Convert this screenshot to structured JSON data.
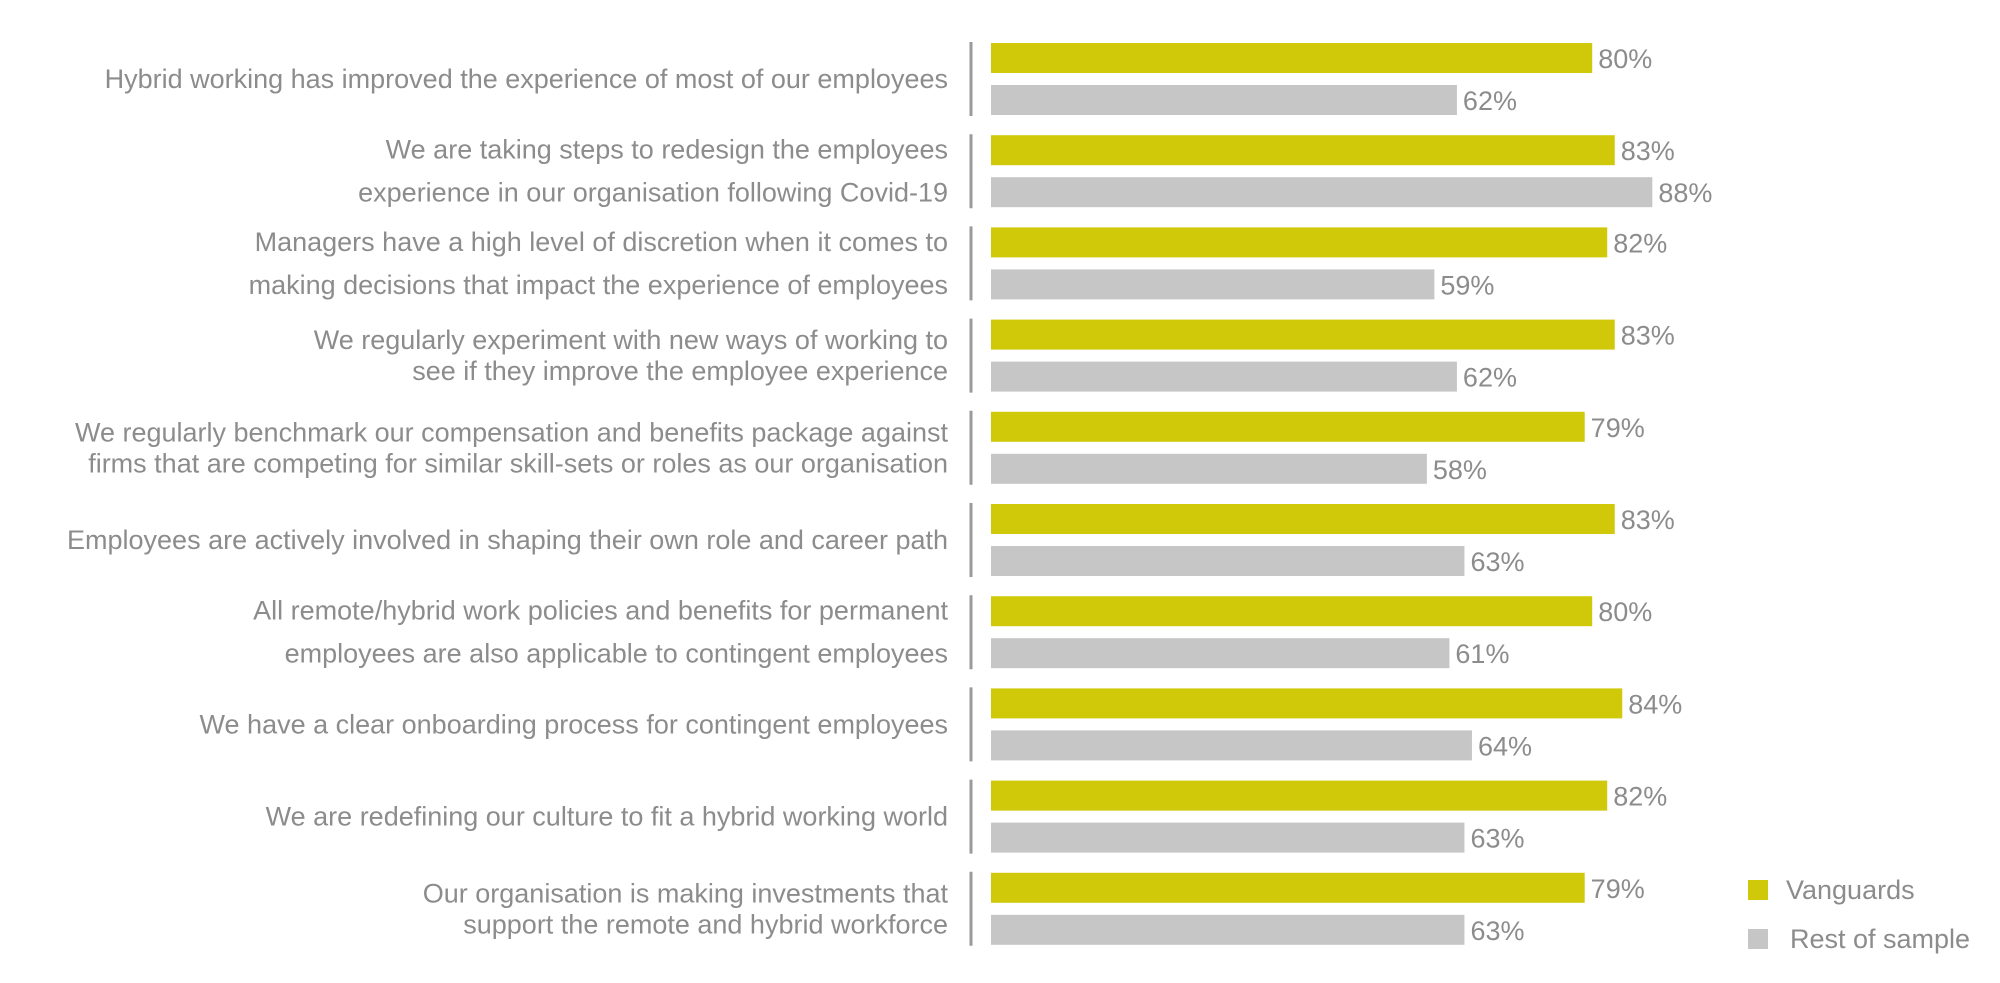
{
  "chart_data": {
    "type": "bar",
    "orientation": "horizontal",
    "title": "",
    "xlabel": "",
    "ylabel": "",
    "xlim": [
      0,
      100
    ],
    "grid": false,
    "legend_position": "bottom-right",
    "value_suffix": "%",
    "colors": {
      "Vanguards": "#d0c90a",
      "Rest of sample": "#c6c6c6"
    },
    "categories": [
      [
        "Hybrid working has improved the experience of most of our employees"
      ],
      [
        "We are taking steps to redesign the employees",
        "experience in our organisation following Covid-19"
      ],
      [
        "Managers have a high level of discretion when it comes to",
        "making decisions that impact the experience of employees"
      ],
      [
        "We regularly experiment with new ways of working to",
        "see if they improve the employee experience"
      ],
      [
        "We regularly benchmark our compensation and benefits package against",
        "firms that are competing for similar skill-sets or roles as our organisation"
      ],
      [
        "Employees are actively involved in shaping their own role and career path"
      ],
      [
        "All remote/hybrid work policies and benefits for permanent",
        "employees are also applicable to contingent employees"
      ],
      [
        "We have a clear onboarding process for contingent employees"
      ],
      [
        "We are redefining our culture to fit a hybrid working world"
      ],
      [
        "Our organisation is making investments that",
        "support the remote and hybrid workforce"
      ]
    ],
    "series": [
      {
        "name": "Vanguards",
        "values": [
          80,
          83,
          82,
          83,
          79,
          83,
          80,
          84,
          82,
          79
        ]
      },
      {
        "name": "Rest of sample",
        "values": [
          62,
          88,
          59,
          62,
          58,
          63,
          61,
          64,
          63,
          63
        ]
      }
    ]
  }
}
